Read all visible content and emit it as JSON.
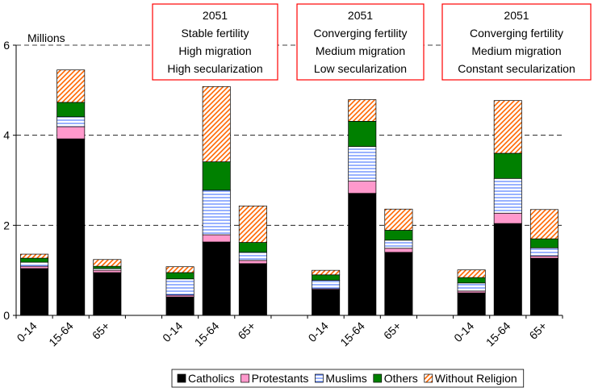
{
  "chart_data": {
    "type": "stacked-bar",
    "y_label": "Millions",
    "categories": [
      "0-14",
      "15-64",
      "65+",
      null,
      "0-14",
      "15-64",
      "65+",
      null,
      "0-14",
      "15-64",
      "65+",
      null,
      "0-14",
      "15-64",
      "65+"
    ],
    "series": [
      {
        "name": "Catholics",
        "color": "#000000",
        "pattern": "solid",
        "values": [
          1.04,
          3.92,
          0.95,
          null,
          0.41,
          1.63,
          1.15,
          null,
          0.57,
          2.71,
          1.4,
          null,
          0.5,
          2.04,
          1.27
        ]
      },
      {
        "name": "Protestants",
        "color": "#ff99cc",
        "pattern": "solid",
        "values": [
          0.05,
          0.27,
          0.05,
          null,
          0.04,
          0.16,
          0.07,
          null,
          0.02,
          0.27,
          0.09,
          null,
          0.04,
          0.23,
          0.05
        ]
      },
      {
        "name": "Muslims",
        "color": "#3366ff",
        "pattern": "horizontal",
        "values": [
          0.09,
          0.22,
          0.04,
          null,
          0.36,
          0.99,
          0.18,
          null,
          0.19,
          0.77,
          0.18,
          null,
          0.18,
          0.77,
          0.18
        ]
      },
      {
        "name": "Others",
        "color": "#008000",
        "pattern": "solid",
        "values": [
          0.09,
          0.32,
          0.05,
          null,
          0.14,
          0.63,
          0.22,
          null,
          0.12,
          0.56,
          0.22,
          null,
          0.12,
          0.56,
          0.2
        ]
      },
      {
        "name": "Without Religion",
        "color": "#ff6600",
        "pattern": "diagonal",
        "values": [
          0.09,
          0.72,
          0.15,
          null,
          0.13,
          1.67,
          0.81,
          null,
          0.1,
          0.48,
          0.47,
          null,
          0.17,
          1.17,
          0.65
        ]
      }
    ],
    "ylim": [
      0,
      6
    ],
    "yticks": [
      0,
      2,
      4,
      6
    ],
    "grid": true,
    "annotations": [
      {
        "lines": [
          "2051",
          "Stable fertility",
          "High migration",
          "High secularization"
        ]
      },
      {
        "lines": [
          "2051",
          "Converging fertility",
          "Medium migration",
          "Low secularization"
        ]
      },
      {
        "lines": [
          "2051",
          "Converging fertility",
          "Medium migration",
          "Constant secularization"
        ]
      }
    ],
    "legend": "bottom"
  }
}
